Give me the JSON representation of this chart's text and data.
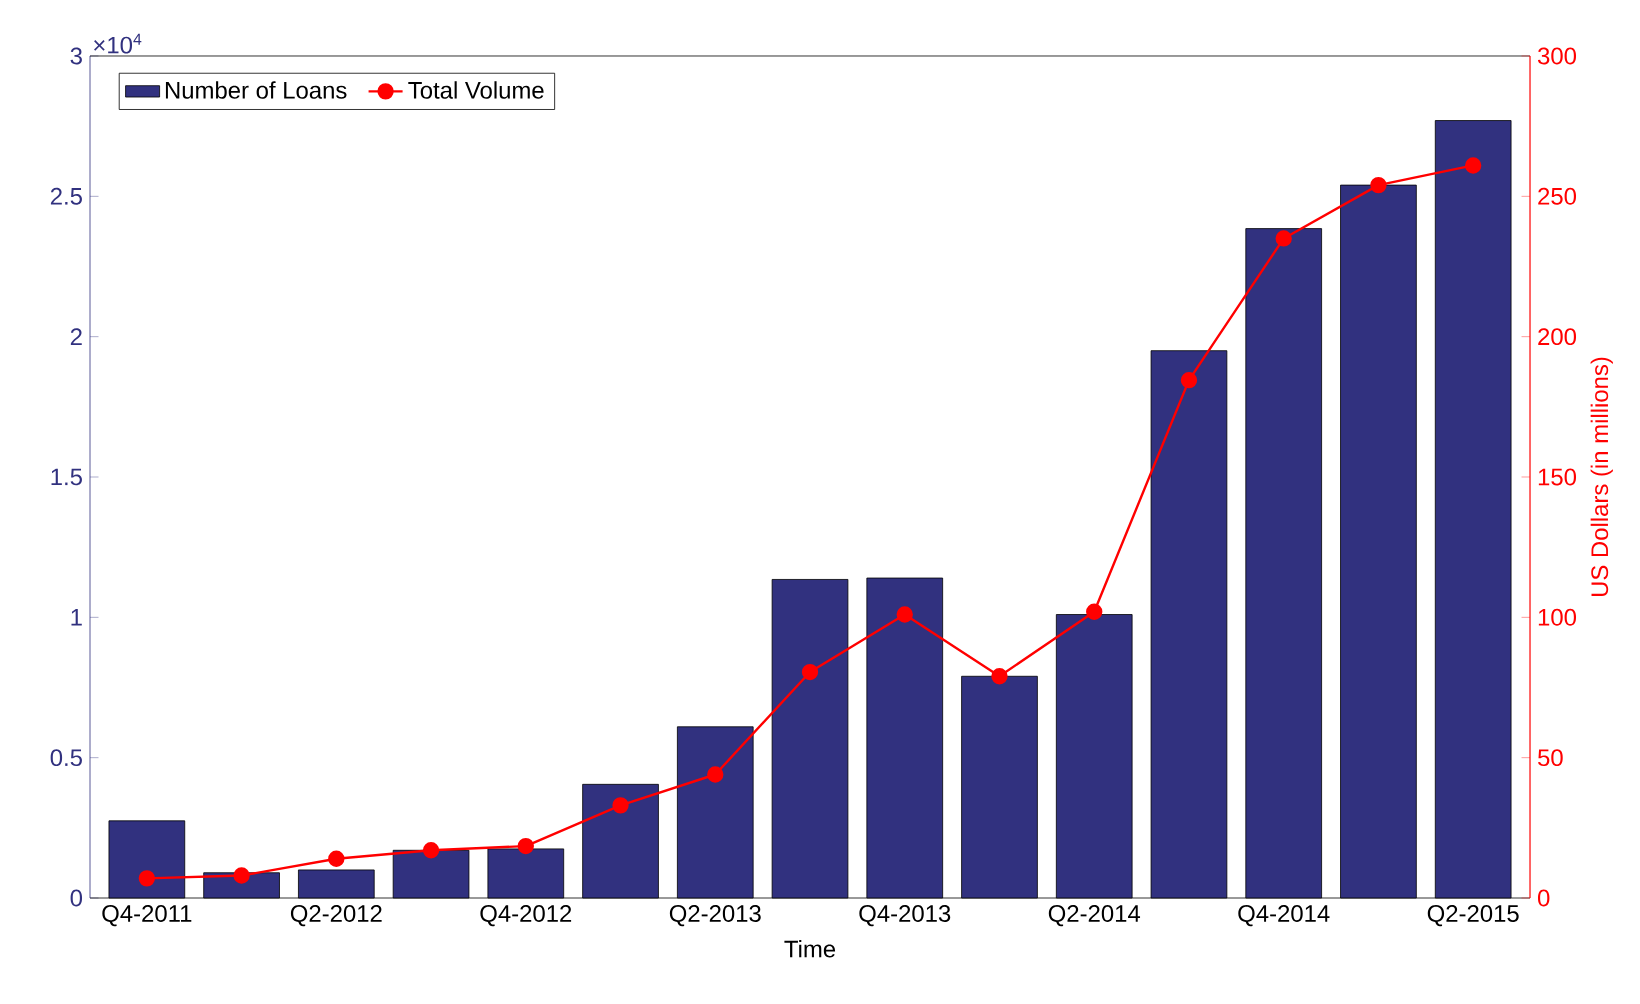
{
  "chart_data": {
    "type": "bar",
    "xlabel": "Time",
    "y2label": "US Dollars (in millions)",
    "annotations": [
      "×10$^{4}$"
    ],
    "categories": [
      "Q4-2011",
      null,
      "Q2-2012",
      null,
      "Q4-2012",
      null,
      "Q2-2013",
      null,
      "Q4-2013",
      null,
      "Q2-2014",
      null,
      "Q4-2014",
      null,
      "Q2-2015"
    ],
    "series": [
      {
        "name": "Number of Loans",
        "color": "#31317f",
        "values": [
          0.275,
          0.09,
          0.1,
          0.17,
          0.175,
          0.405,
          0.61,
          1.135,
          1.14,
          0.79,
          1.01,
          1.95,
          2.385,
          2.54,
          2.77
        ]
      },
      {
        "name": "Total Volume",
        "type": "line",
        "axis": "y2",
        "color": "#ff0000",
        "values": [
          7,
          8,
          14,
          17,
          18.5,
          33,
          44,
          80.5,
          101,
          79,
          102,
          184.5,
          235,
          254,
          261
        ]
      }
    ],
    "ylim": [
      0,
      3
    ],
    "yticks": [
      0,
      0.5,
      1,
      1.5,
      2,
      2.5,
      3
    ],
    "y2lim": [
      0,
      300
    ],
    "y2ticks": [
      0,
      50,
      100,
      150,
      200,
      250,
      300
    ],
    "legend": "top left",
    "marker": "circle",
    "line_style": "solid"
  }
}
